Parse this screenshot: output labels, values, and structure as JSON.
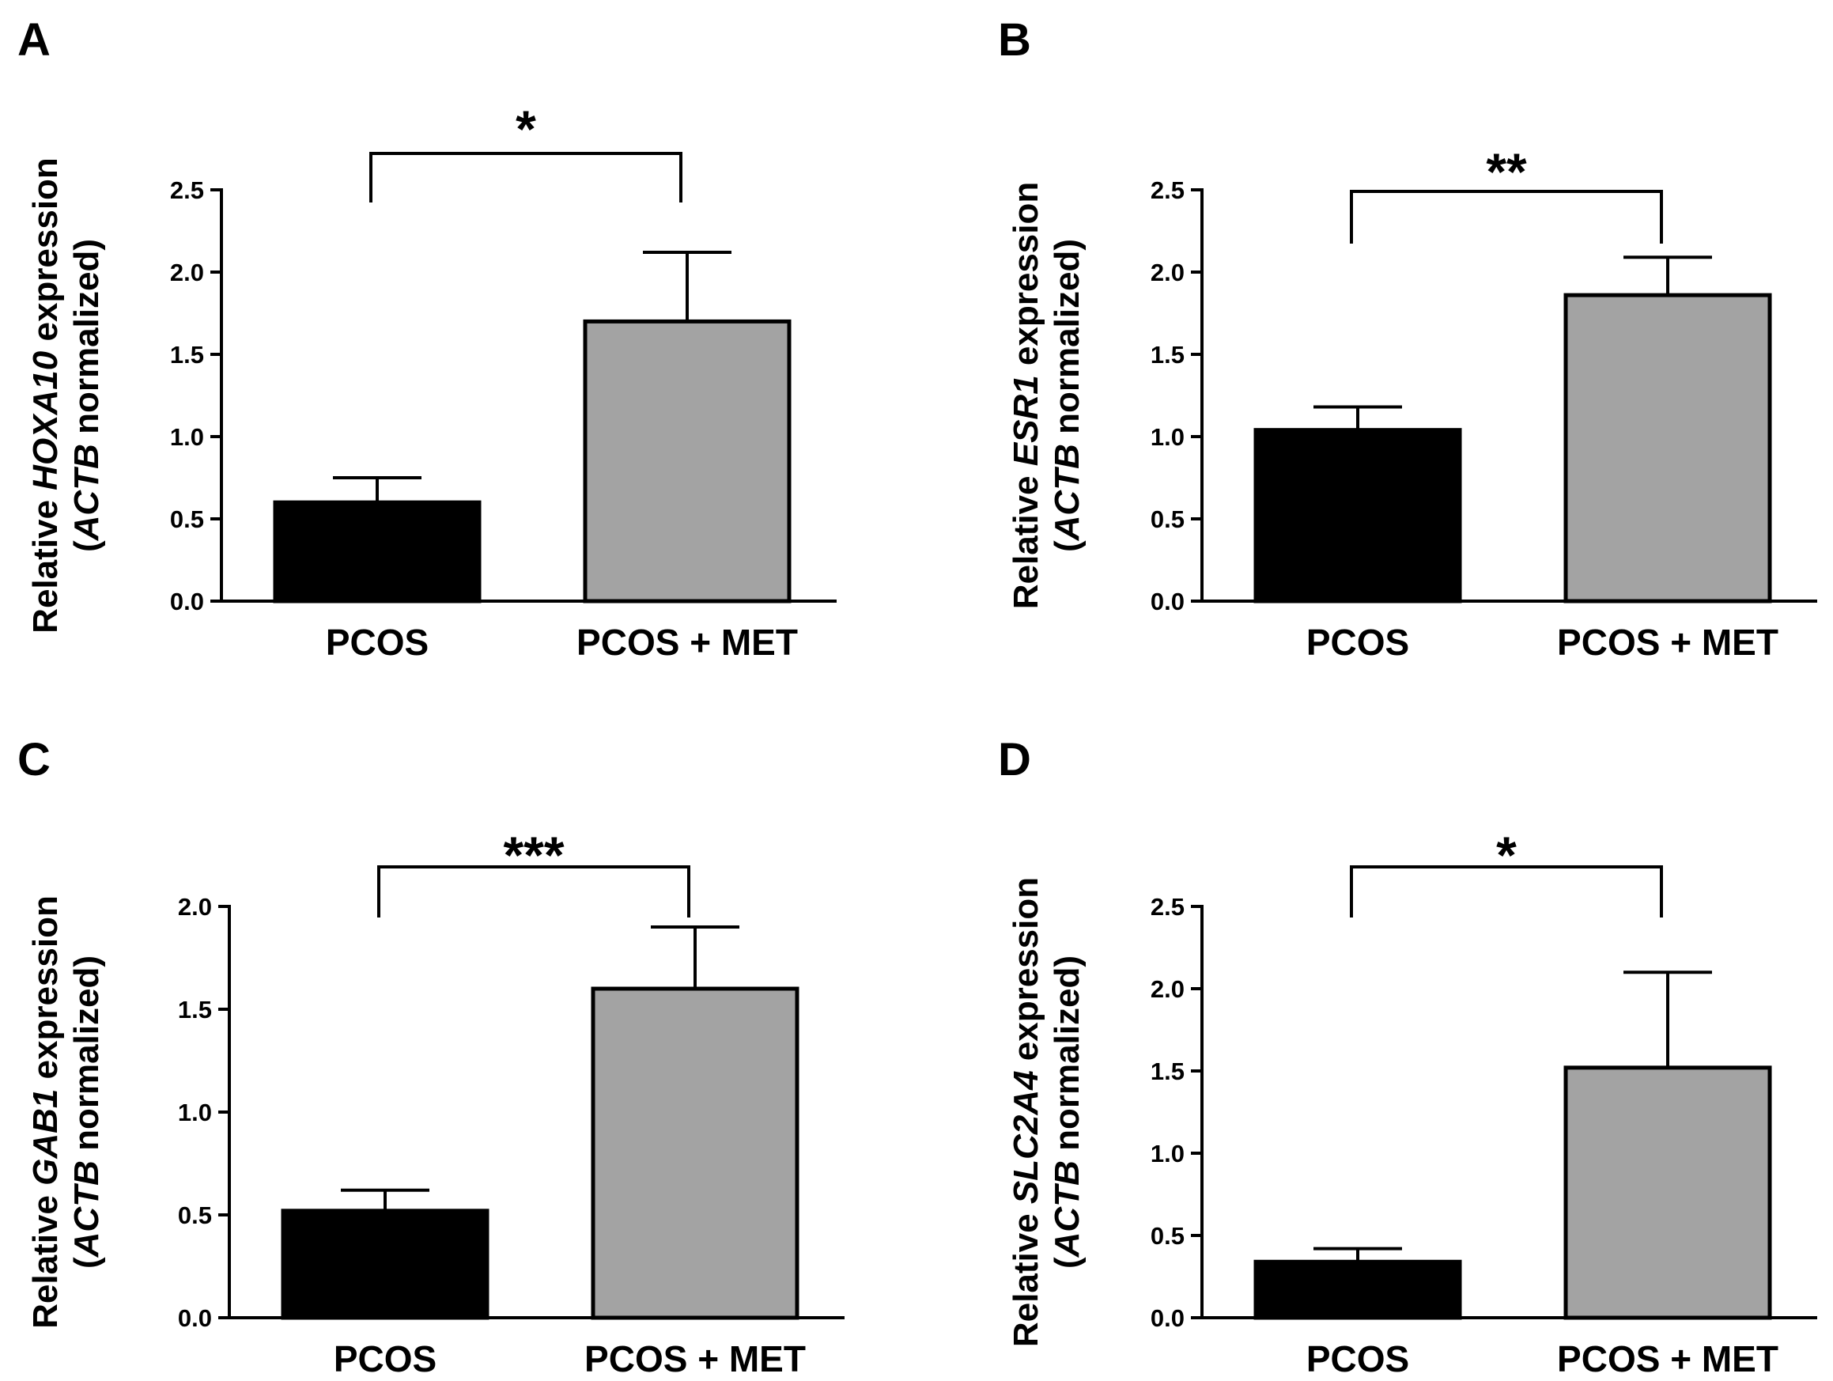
{
  "chart_data": [
    {
      "panel": "A",
      "type": "bar",
      "categories": [
        "PCOS",
        "PCOS + MET"
      ],
      "values": [
        0.6,
        1.7
      ],
      "errors": [
        0.15,
        0.42
      ],
      "colors": [
        "#000000",
        "#a3a3a3"
      ],
      "ylabel": {
        "pre": "Relative ",
        "gene": "HOXA10",
        "post": " expression",
        "line2_open": "(",
        "ref": "ACTB",
        "line2_rest": " normalized)"
      },
      "ylim": [
        0,
        2.5
      ],
      "yticks": [
        "0.0",
        "0.5",
        "1.0",
        "1.5",
        "2.0",
        "2.5"
      ],
      "significance": "*"
    },
    {
      "panel": "B",
      "type": "bar",
      "categories": [
        "PCOS",
        "PCOS + MET"
      ],
      "values": [
        1.04,
        1.86
      ],
      "errors": [
        0.14,
        0.23
      ],
      "colors": [
        "#000000",
        "#a3a3a3"
      ],
      "ylabel": {
        "pre": "Relative ",
        "gene": "ESR1",
        "post": " expression",
        "line2_open": "(",
        "ref": "ACTB",
        "line2_rest": " normalized)"
      },
      "ylim": [
        0,
        2.5
      ],
      "yticks": [
        "0.0",
        "0.5",
        "1.0",
        "1.5",
        "2.0",
        "2.5"
      ],
      "significance": "**"
    },
    {
      "panel": "C",
      "type": "bar",
      "categories": [
        "PCOS",
        "PCOS + MET"
      ],
      "values": [
        0.52,
        1.6
      ],
      "errors": [
        0.1,
        0.3
      ],
      "colors": [
        "#000000",
        "#a3a3a3"
      ],
      "ylabel": {
        "pre": "Relative ",
        "gene": "GAB1",
        "post": " expression",
        "line2_open": "(",
        "ref": "ACTB",
        "line2_rest": " normalized)"
      },
      "ylim": [
        0,
        2.0
      ],
      "yticks": [
        "0.0",
        "0.5",
        "1.0",
        "1.5",
        "2.0"
      ],
      "significance": "***"
    },
    {
      "panel": "D",
      "type": "bar",
      "categories": [
        "PCOS",
        "PCOS + MET"
      ],
      "values": [
        0.34,
        1.52
      ],
      "errors": [
        0.08,
        0.58
      ],
      "colors": [
        "#000000",
        "#a3a3a3"
      ],
      "ylabel": {
        "pre": "Relative ",
        "gene": "SLC2A4",
        "post": " expression",
        "line2_open": "(",
        "ref": "ACTB",
        "line2_rest": " normalized)"
      },
      "ylim": [
        0,
        2.5
      ],
      "yticks": [
        "0.0",
        "0.5",
        "1.0",
        "1.5",
        "2.0",
        "2.5"
      ],
      "significance": "*"
    }
  ]
}
